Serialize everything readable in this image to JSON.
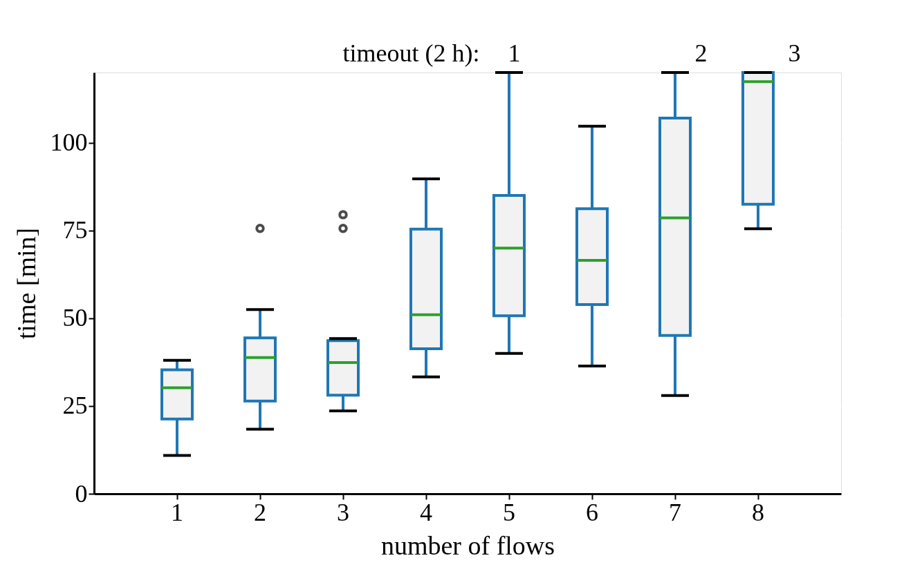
{
  "chart_data": {
    "type": "box",
    "xlabel": "number of flows",
    "ylabel": "time [min]",
    "categories": [
      "1",
      "2",
      "3",
      "4",
      "5",
      "6",
      "7",
      "8"
    ],
    "series": [
      {
        "color": "#1f77b4",
        "boxes": [
          {
            "low": 10.9,
            "q1": 21.3,
            "median": 30.2,
            "q3": 35.3,
            "high": 38
          },
          {
            "low": 18.4,
            "q1": 26.4,
            "median": 38.8,
            "q3": 44.4,
            "high": 52.5,
            "outliers": [
              75.6
            ]
          },
          {
            "low": 23.6,
            "q1": 28.1,
            "median": 37.4,
            "q3": 43.6,
            "high": 44.2,
            "outliers": [
              79.5,
              75.6
            ]
          },
          {
            "low": 33.3,
            "q1": 41.3,
            "median": 51,
            "q3": 75.4,
            "high": 89.7
          },
          {
            "low": 40,
            "q1": 50.7,
            "median": 70,
            "q3": 85,
            "high": 120
          },
          {
            "low": 36.4,
            "q1": 53.9,
            "median": 66.5,
            "q3": 81.2,
            "high": 104.7
          },
          {
            "low": 28,
            "q1": 45.1,
            "median": 78.6,
            "q3": 107,
            "high": 120
          },
          {
            "low": 75.5,
            "q1": 82.5,
            "median": 117.4,
            "q3": 120,
            "high": 120
          }
        ]
      }
    ],
    "ylim": [
      0,
      120
    ],
    "yticks": [
      0,
      25,
      50,
      75,
      100
    ],
    "grid": "y",
    "annotations": [
      "timeout (2 h):",
      "1",
      "2",
      "3"
    ]
  }
}
